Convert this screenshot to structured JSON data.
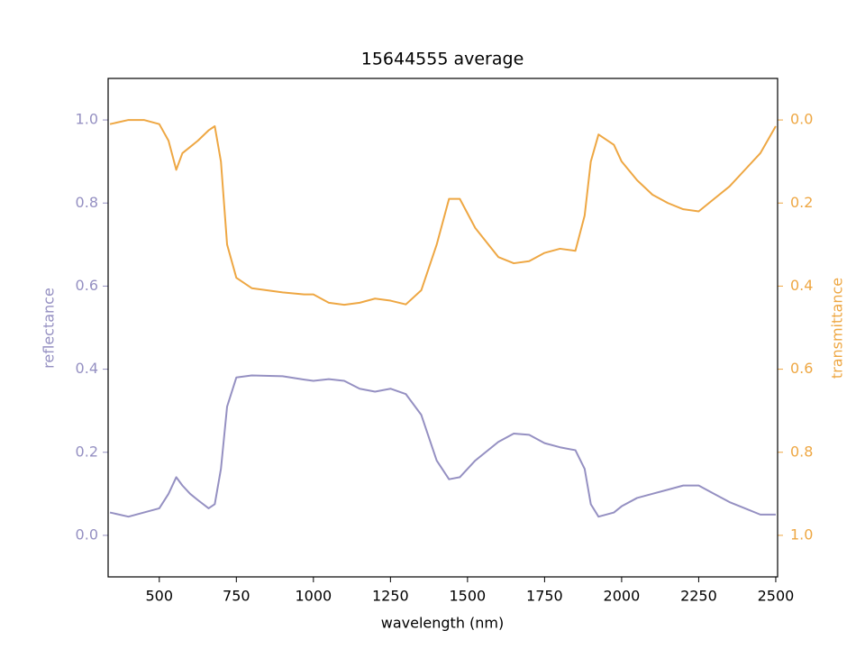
{
  "chart_data": {
    "type": "line",
    "title": "15644555 average",
    "x_label": "wavelength (nm)",
    "y_label": "reflectance",
    "y2_label": "transmittance",
    "x": [
      340,
      400,
      450,
      500,
      530,
      555,
      575,
      600,
      625,
      660,
      680,
      700,
      720,
      750,
      800,
      900,
      970,
      1000,
      1050,
      1100,
      1150,
      1200,
      1250,
      1300,
      1350,
      1400,
      1440,
      1475,
      1525,
      1600,
      1650,
      1700,
      1750,
      1800,
      1850,
      1880,
      1900,
      1925,
      1975,
      2000,
      2050,
      2100,
      2150,
      2200,
      2250,
      2300,
      2350,
      2400,
      2450,
      2500
    ],
    "series": [
      {
        "name": "reflectance",
        "color": "#9590c2",
        "axis": "y",
        "values": [
          0.055,
          0.045,
          0.055,
          0.065,
          0.1,
          0.14,
          0.12,
          0.1,
          0.085,
          0.065,
          0.075,
          0.16,
          0.31,
          0.38,
          0.385,
          0.383,
          0.375,
          0.372,
          0.376,
          0.372,
          0.353,
          0.346,
          0.353,
          0.34,
          0.29,
          0.18,
          0.135,
          0.14,
          0.18,
          0.225,
          0.245,
          0.242,
          0.222,
          0.212,
          0.205,
          0.16,
          0.075,
          0.045,
          0.055,
          0.07,
          0.09,
          0.1,
          0.11,
          0.12,
          0.12,
          0.1,
          0.08,
          0.065,
          0.05,
          0.05
        ]
      },
      {
        "name": "transmittance",
        "color": "#eea743",
        "axis": "y2",
        "values": [
          0.01,
          0.0,
          0.0,
          0.01,
          0.05,
          0.12,
          0.08,
          0.065,
          0.05,
          0.025,
          0.015,
          0.1,
          0.3,
          0.38,
          0.405,
          0.415,
          0.42,
          0.42,
          0.44,
          0.445,
          0.44,
          0.43,
          0.435,
          0.444,
          0.41,
          0.3,
          0.19,
          0.19,
          0.26,
          0.33,
          0.345,
          0.34,
          0.32,
          0.31,
          0.315,
          0.23,
          0.1,
          0.035,
          0.06,
          0.1,
          0.145,
          0.18,
          0.2,
          0.215,
          0.22,
          0.19,
          0.16,
          0.12,
          0.08,
          0.015
        ]
      }
    ],
    "xlim": [
      334,
      2506
    ],
    "xticks": [
      500,
      750,
      1000,
      1250,
      1500,
      1750,
      2000,
      2250,
      2500
    ],
    "ylim": [
      -0.1,
      1.1
    ],
    "yticks": [
      {
        "value": 0,
        "label": "0.0"
      },
      0.2,
      0.4,
      0.6,
      0.8,
      {
        "value": 1,
        "label": "1.0"
      }
    ],
    "y2lim": [
      1.1,
      -0.1
    ],
    "y2ticks": [
      {
        "value": 0,
        "label": "0.0"
      },
      0.2,
      0.4,
      0.6,
      0.8,
      {
        "value": 1,
        "label": "1.0"
      }
    ],
    "grid": false
  }
}
